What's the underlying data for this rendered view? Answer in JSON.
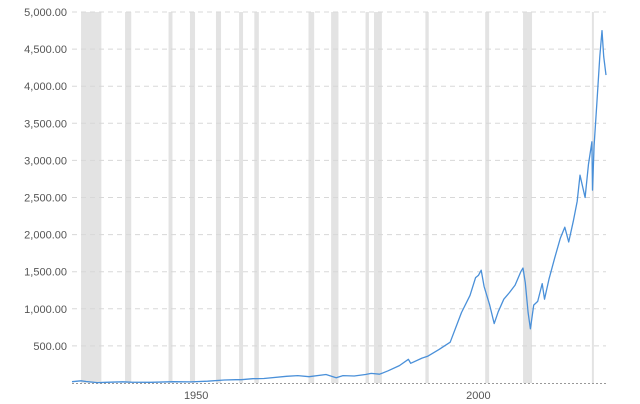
{
  "colors": {
    "line": "#4a90d9",
    "recession": "#e3e3e3",
    "grid": "#d8d8d8",
    "baseline": "#999999",
    "text": "#555555"
  },
  "chart_data": {
    "type": "line",
    "title": "",
    "xlabel": "",
    "ylabel": "",
    "xlim": [
      1928,
      2022.6
    ],
    "ylim": [
      0,
      5000
    ],
    "grid": {
      "horizontal": true,
      "style": "dashed",
      "vertical": false
    },
    "legend": "none",
    "y_ticks": [
      {
        "value": 500,
        "label": "500.00"
      },
      {
        "value": 1000,
        "label": "1,000.00"
      },
      {
        "value": 1500,
        "label": "1,500.00"
      },
      {
        "value": 2000,
        "label": "2,000.00"
      },
      {
        "value": 2500,
        "label": "2,500.00"
      },
      {
        "value": 3000,
        "label": "3,000.00"
      },
      {
        "value": 3500,
        "label": "3,500.00"
      },
      {
        "value": 4000,
        "label": "4,000.00"
      },
      {
        "value": 4500,
        "label": "4,500.00"
      },
      {
        "value": 5000,
        "label": "5,000.00"
      }
    ],
    "x_ticks": [
      {
        "value": 1950,
        "label": "1950"
      },
      {
        "value": 2000,
        "label": "2000"
      }
    ],
    "recessions": [
      [
        1929.6,
        1933.2
      ],
      [
        1937.4,
        1938.5
      ],
      [
        1945.1,
        1945.8
      ],
      [
        1948.9,
        1949.8
      ],
      [
        1953.5,
        1954.4
      ],
      [
        1957.6,
        1958.3
      ],
      [
        1960.3,
        1961.1
      ],
      [
        1969.9,
        1970.9
      ],
      [
        1973.9,
        1975.2
      ],
      [
        1980.0,
        1980.6
      ],
      [
        1981.5,
        1982.9
      ],
      [
        1990.6,
        1991.2
      ],
      [
        2001.2,
        2001.9
      ],
      [
        2007.9,
        2009.5
      ],
      [
        2020.1,
        2020.4
      ]
    ],
    "series": [
      {
        "values": [
          [
            1928.0,
            18
          ],
          [
            1929.6,
            30
          ],
          [
            1930.5,
            20
          ],
          [
            1932.5,
            6
          ],
          [
            1934.0,
            10
          ],
          [
            1937.0,
            16
          ],
          [
            1938.5,
            11
          ],
          [
            1942.0,
            9
          ],
          [
            1946.0,
            17
          ],
          [
            1949.0,
            15
          ],
          [
            1952.0,
            24
          ],
          [
            1955.0,
            40
          ],
          [
            1957.0,
            44
          ],
          [
            1958.0,
            45
          ],
          [
            1960.0,
            58
          ],
          [
            1962.0,
            60
          ],
          [
            1966.0,
            90
          ],
          [
            1968.0,
            100
          ],
          [
            1970.0,
            85
          ],
          [
            1973.0,
            115
          ],
          [
            1974.8,
            70
          ],
          [
            1976.0,
            100
          ],
          [
            1978.0,
            95
          ],
          [
            1980.0,
            115
          ],
          [
            1981.0,
            130
          ],
          [
            1982.5,
            118
          ],
          [
            1984.0,
            165
          ],
          [
            1986.0,
            235
          ],
          [
            1987.6,
            320
          ],
          [
            1988.0,
            265
          ],
          [
            1990.0,
            335
          ],
          [
            1991.0,
            360
          ],
          [
            1993.0,
            450
          ],
          [
            1995.0,
            550
          ],
          [
            1997.0,
            950
          ],
          [
            1998.5,
            1180
          ],
          [
            1999.5,
            1420
          ],
          [
            2000.0,
            1450
          ],
          [
            2000.5,
            1520
          ],
          [
            2001.0,
            1300
          ],
          [
            2002.0,
            1050
          ],
          [
            2002.8,
            800
          ],
          [
            2003.5,
            960
          ],
          [
            2004.5,
            1130
          ],
          [
            2005.5,
            1220
          ],
          [
            2006.5,
            1320
          ],
          [
            2007.5,
            1500
          ],
          [
            2007.9,
            1550
          ],
          [
            2008.3,
            1350
          ],
          [
            2008.8,
            950
          ],
          [
            2009.2,
            730
          ],
          [
            2009.8,
            1050
          ],
          [
            2010.5,
            1100
          ],
          [
            2011.3,
            1340
          ],
          [
            2011.7,
            1130
          ],
          [
            2012.5,
            1400
          ],
          [
            2013.5,
            1680
          ],
          [
            2014.5,
            1950
          ],
          [
            2015.3,
            2100
          ],
          [
            2016.0,
            1900
          ],
          [
            2016.8,
            2180
          ],
          [
            2017.5,
            2450
          ],
          [
            2018.0,
            2800
          ],
          [
            2018.9,
            2500
          ],
          [
            2019.5,
            2950
          ],
          [
            2020.1,
            3250
          ],
          [
            2020.2,
            2600
          ],
          [
            2020.5,
            3200
          ],
          [
            2021.0,
            3800
          ],
          [
            2021.5,
            4400
          ],
          [
            2021.9,
            4750
          ],
          [
            2022.2,
            4400
          ],
          [
            2022.6,
            4150
          ]
        ]
      }
    ]
  }
}
